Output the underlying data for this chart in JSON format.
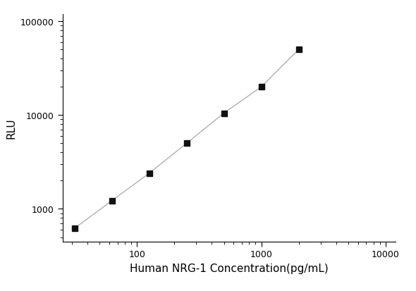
{
  "x_values": [
    31.25,
    62.5,
    125,
    250,
    500,
    1000,
    2000
  ],
  "y_values": [
    620,
    1220,
    2400,
    5000,
    10500,
    20000,
    50000
  ],
  "xlabel": "Human NRG-1 Concentration(pg/mL)",
  "ylabel": "RLU",
  "xlim": [
    25,
    12000
  ],
  "ylim": [
    450,
    120000
  ],
  "xticks": [
    100,
    1000,
    10000
  ],
  "yticks": [
    1000,
    10000,
    100000
  ],
  "ytick_labels": [
    "1000",
    "10000",
    "100000"
  ],
  "xtick_labels": [
    "100",
    "1000",
    "10000"
  ],
  "marker": "s",
  "marker_color": "#111111",
  "marker_size": 6,
  "line_color": "#b0b0b0",
  "line_width": 1.0,
  "background_color": "#ffffff",
  "font_size_axis_label": 11,
  "font_size_ticks": 9
}
